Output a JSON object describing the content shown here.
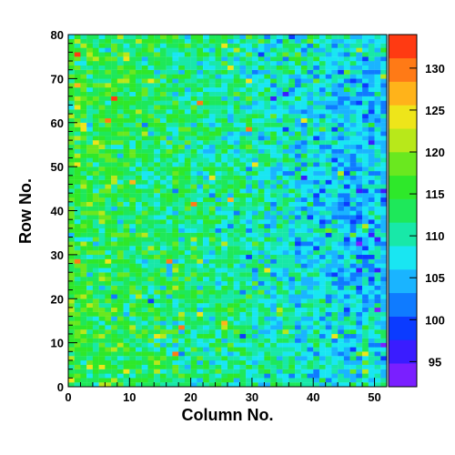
{
  "chart_data": {
    "type": "heatmap",
    "xlabel": "Column No.",
    "ylabel": "Row No.",
    "xlim": [
      0,
      52
    ],
    "ylim": [
      0,
      80
    ],
    "x_ticks": [
      0,
      10,
      20,
      30,
      40,
      50
    ],
    "y_ticks": [
      0,
      10,
      20,
      30,
      40,
      50,
      60,
      70,
      80
    ],
    "grid": false,
    "n_columns": 52,
    "n_rows": 80,
    "z_range": [
      92,
      134
    ],
    "colorbar_ticks": [
      95,
      100,
      105,
      110,
      115,
      120,
      125,
      130
    ],
    "colorbar_position": "right",
    "trend": {
      "description": "values highest (about 115) at low column numbers, decreasing toward about 108 at high column numbers, with a low-value region around columns 28-52 and rows 20-70",
      "left_mean": 115,
      "right_mean": 107,
      "noise_sd": 3.5
    },
    "palette": [
      "#7a1fff",
      "#3a1cff",
      "#0b3bff",
      "#0f7bff",
      "#1ab4ff",
      "#19e6f2",
      "#18e8a8",
      "#1ee85a",
      "#2ee82a",
      "#6ae81f",
      "#b8e81a",
      "#eee51a",
      "#ffb31a",
      "#ff7a16",
      "#ff3a12"
    ]
  }
}
